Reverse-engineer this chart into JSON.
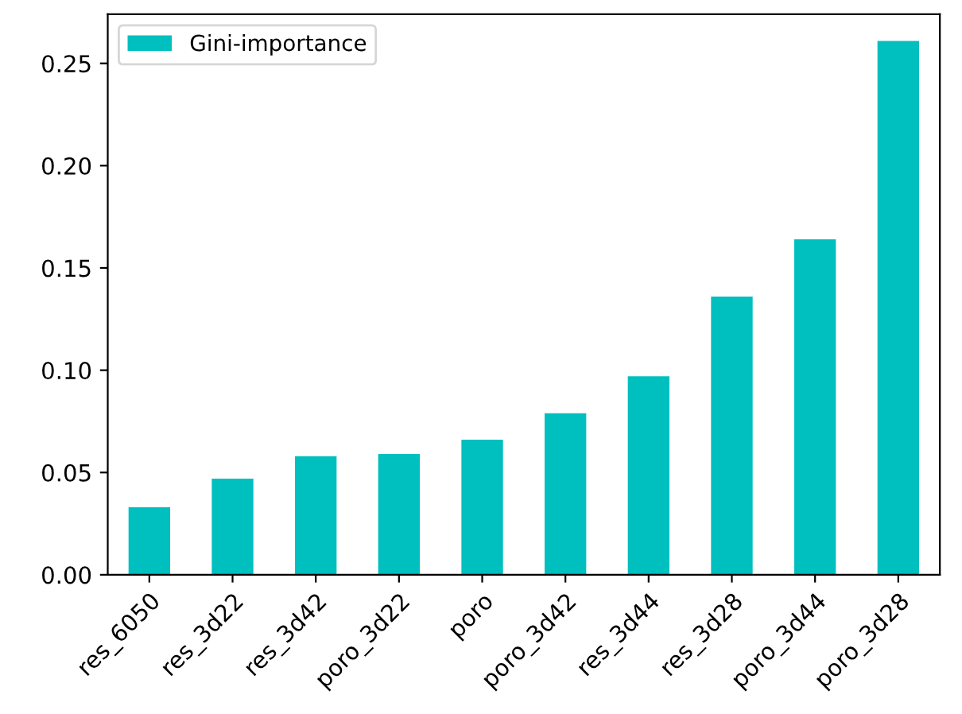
{
  "chart_data": {
    "type": "bar",
    "categories": [
      "res_6050",
      "res_3d22",
      "res_3d42",
      "poro_3d22",
      "poro",
      "poro_3d42",
      "res_3d44",
      "res_3d28",
      "poro_3d44",
      "poro_3d28"
    ],
    "series": [
      {
        "name": "Gini-importance",
        "color": "#00bfbf",
        "values": [
          0.033,
          0.047,
          0.058,
          0.059,
          0.066,
          0.079,
          0.097,
          0.136,
          0.164,
          0.261
        ]
      }
    ],
    "ylim": [
      0,
      0.274
    ],
    "yticks": [
      {
        "value": 0,
        "label": "0.00"
      },
      {
        "value": 0.05,
        "label": "0.05"
      },
      {
        "value": 0.1,
        "label": "0.10"
      },
      {
        "value": 0.15,
        "label": "0.15"
      },
      {
        "value": 0.2,
        "label": "0.20"
      },
      {
        "value": 0.25,
        "label": "0.25"
      }
    ],
    "legend": "top left",
    "grid": false
  }
}
